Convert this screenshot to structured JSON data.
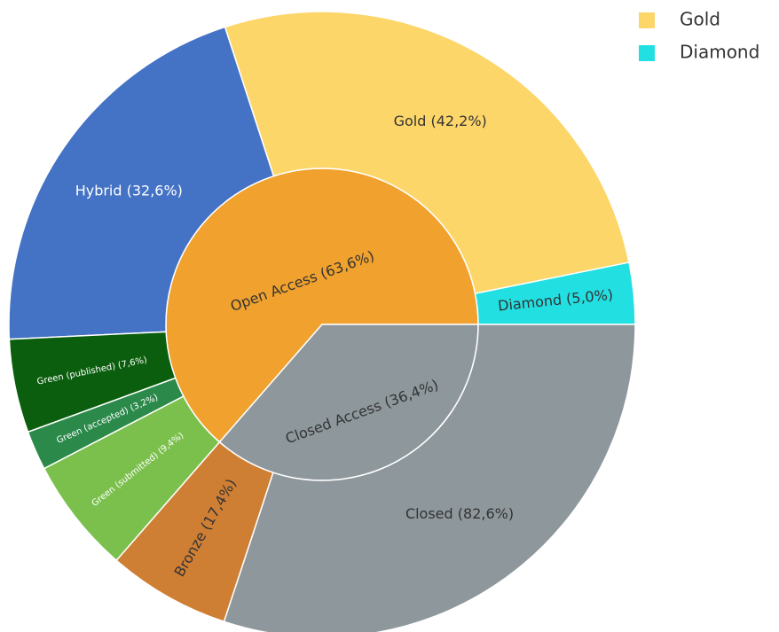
{
  "chart_data": {
    "type": "sunburst",
    "inner": {
      "categories": [
        "Open Access",
        "Closed Access"
      ],
      "values": [
        63.6,
        36.4
      ],
      "value_labels": [
        "Open Access (63,6%)",
        "Closed Access (36,4%)"
      ],
      "colors": [
        "#f0a12e",
        "#8e979b"
      ]
    },
    "outer": {
      "categories": [
        "Diamond",
        "Gold",
        "Hybrid",
        "Green (published)",
        "Green (accepted)",
        "Green (submitted)",
        "Bronze",
        "Closed"
      ],
      "parents": [
        0,
        0,
        0,
        0,
        0,
        0,
        1,
        1
      ],
      "values": [
        5.0,
        42.2,
        32.6,
        7.6,
        3.2,
        9.4,
        17.4,
        82.6
      ],
      "value_labels": [
        "Diamond (5,0%)",
        "Gold (42,2%)",
        "Hybrid (32,6%)",
        "Green (published) (7,6%)",
        "Green (accepted) (3,2%)",
        "Green (submitted) (9,4%)",
        "Bronze (17,4%)",
        "Closed (82,6%)"
      ],
      "colors": [
        "#22dfe2",
        "#fdd66a",
        "#4472c4",
        "#0b5e0d",
        "#2b8a4a",
        "#7bc04d",
        "#cf7f34",
        "#8e979b"
      ]
    }
  }
}
